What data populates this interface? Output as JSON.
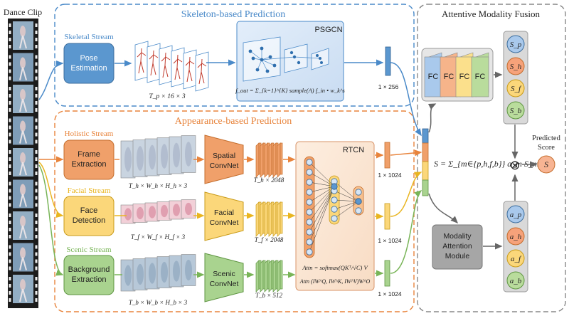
{
  "dance_clip": {
    "label": "Dance Clip"
  },
  "skeleton": {
    "title": "Skeleton-based Prediction",
    "stream_label": "Skeletal Stream",
    "pose_box": [
      "Pose",
      "Estimation"
    ],
    "pose_dim": "T_p × 16 × 3",
    "psgcn_title": "PSGCN",
    "psgcn_formula": "f_out = Σ_{k=1}^{K} sample(A) f_in • w_k^s",
    "feat_dim": "1 × 256"
  },
  "appearance": {
    "title": "Appearance-based Prediction",
    "holistic": {
      "stream_label": "Holistic Stream",
      "box": [
        "Frame",
        "Extraction"
      ],
      "frames_dim": "T_h × W_h × H_h × 3",
      "convnet": [
        "Spatial",
        "ConvNet"
      ],
      "conv_dim": "T_h × 2048",
      "out_dim": "1 × 1024"
    },
    "facial": {
      "stream_label": "Facial Stream",
      "box": [
        "Face",
        "Detection"
      ],
      "frames_dim": "T_f × W_f × H_f × 3",
      "convnet": [
        "Facial",
        "ConvNet"
      ],
      "conv_dim": "T_f × 2048",
      "out_dim": "1 × 1024"
    },
    "scenic": {
      "stream_label": "Scenic Stream",
      "box": [
        "Background",
        "Extraction"
      ],
      "frames_dim": "T_b × W_b × H_b × 3",
      "convnet": [
        "Scenic",
        "ConvNet"
      ],
      "conv_dim": "T_b × 512",
      "out_dim": "1 × 1024"
    },
    "rtcn_title": "RTCN",
    "attn_formula_1": "Attn = softmax(QKᵀ/√C) V",
    "attn_formula_2": "Attn (IW^Q, IW^K, IW^V)W^O"
  },
  "fusion": {
    "title": "Attentive Modality Fusion",
    "fc_labels": [
      "FC",
      "FC",
      "FC",
      "FC"
    ],
    "scores": [
      "S_p",
      "S_h",
      "S_f",
      "S_b"
    ],
    "weights": [
      "a_p",
      "a_h",
      "a_f",
      "a_b"
    ],
    "sum_formula": "S = Σ_{m∈{p,h,f,b}} a_m S_m",
    "otimes": "⊗",
    "predicted_label": [
      "Predicted",
      "Score"
    ],
    "predicted_symbol": "S",
    "attention_module": [
      "Modality",
      "Attention",
      "Module"
    ]
  },
  "colors": {
    "blue": "#4a8ac9",
    "orange": "#e8843c",
    "yellow": "#f2c12e",
    "green": "#79b558",
    "gray": "#9a9a9a"
  }
}
